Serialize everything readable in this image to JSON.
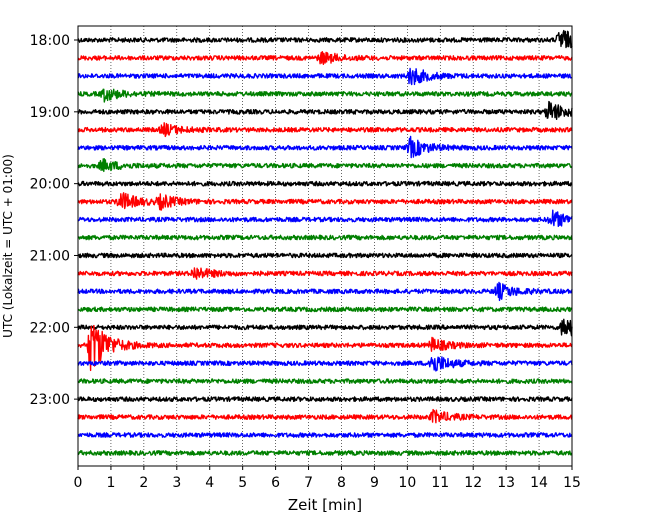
{
  "chart_data": {
    "type": "line",
    "title": "",
    "xlabel": "Zeit  [min]",
    "ylabel": "UTC (Lokalzeit = UTC + 01:00)",
    "xlim": [
      0,
      15
    ],
    "x_ticks": [
      "0",
      "1",
      "2",
      "3",
      "4",
      "5",
      "6",
      "7",
      "8",
      "9",
      "10",
      "11",
      "12",
      "13",
      "14",
      "15"
    ],
    "y_tick_labels": [
      "18:00",
      "19:00",
      "20:00",
      "21:00",
      "22:00",
      "23:00"
    ],
    "grid": "vertical dotted",
    "color_cycle": [
      "#000000",
      "#ff0000",
      "#0000ff",
      "#008000"
    ],
    "traces": [
      {
        "label": "18:00",
        "color": "#000000",
        "events": [
          {
            "t": 14.65,
            "amp": 1.0
          }
        ]
      },
      {
        "label": "18:15",
        "color": "#ff0000",
        "events": [
          {
            "t": 7.4,
            "amp": 0.5
          }
        ]
      },
      {
        "label": "18:30",
        "color": "#0000ff",
        "events": [
          {
            "t": 10.1,
            "amp": 0.8
          }
        ]
      },
      {
        "label": "18:45",
        "color": "#008000",
        "events": [
          {
            "t": 0.8,
            "amp": 0.55
          }
        ]
      },
      {
        "label": "19:00",
        "color": "#000000",
        "events": [
          {
            "t": 14.3,
            "amp": 0.9
          }
        ]
      },
      {
        "label": "19:15",
        "color": "#ff0000",
        "events": [
          {
            "t": 2.6,
            "amp": 0.5
          }
        ]
      },
      {
        "label": "19:30",
        "color": "#0000ff",
        "events": [
          {
            "t": 10.1,
            "amp": 0.85
          }
        ]
      },
      {
        "label": "19:45",
        "color": "#008000",
        "events": [
          {
            "t": 0.75,
            "amp": 0.5
          }
        ]
      },
      {
        "label": "20:00",
        "color": "#000000",
        "events": []
      },
      {
        "label": "20:15",
        "color": "#ff0000",
        "events": [
          {
            "t": 1.3,
            "amp": 0.8
          },
          {
            "t": 2.5,
            "amp": 0.55
          }
        ]
      },
      {
        "label": "20:30",
        "color": "#0000ff",
        "events": [
          {
            "t": 14.4,
            "amp": 0.75
          }
        ]
      },
      {
        "label": "20:45",
        "color": "#008000",
        "events": []
      },
      {
        "label": "21:00",
        "color": "#000000",
        "events": []
      },
      {
        "label": "21:15",
        "color": "#ff0000",
        "events": [
          {
            "t": 3.55,
            "amp": 0.55
          }
        ]
      },
      {
        "label": "21:30",
        "color": "#0000ff",
        "events": [
          {
            "t": 12.75,
            "amp": 0.7
          }
        ]
      },
      {
        "label": "21:45",
        "color": "#008000",
        "events": []
      },
      {
        "label": "22:00",
        "color": "#000000",
        "events": [
          {
            "t": 14.75,
            "amp": 0.95
          }
        ]
      },
      {
        "label": "22:15",
        "color": "#ff0000",
        "events": [
          {
            "t": 0.4,
            "amp": 2.6
          },
          {
            "t": 10.75,
            "amp": 0.55
          }
        ]
      },
      {
        "label": "22:30",
        "color": "#0000ff",
        "events": [
          {
            "t": 10.75,
            "amp": 0.9
          }
        ]
      },
      {
        "label": "22:45",
        "color": "#008000",
        "events": []
      },
      {
        "label": "23:00",
        "color": "#000000",
        "events": []
      },
      {
        "label": "23:15",
        "color": "#ff0000",
        "events": [
          {
            "t": 10.8,
            "amp": 0.55
          }
        ]
      },
      {
        "label": "23:30",
        "color": "#0000ff",
        "events": []
      },
      {
        "label": "23:45",
        "color": "#008000",
        "events": []
      }
    ]
  }
}
